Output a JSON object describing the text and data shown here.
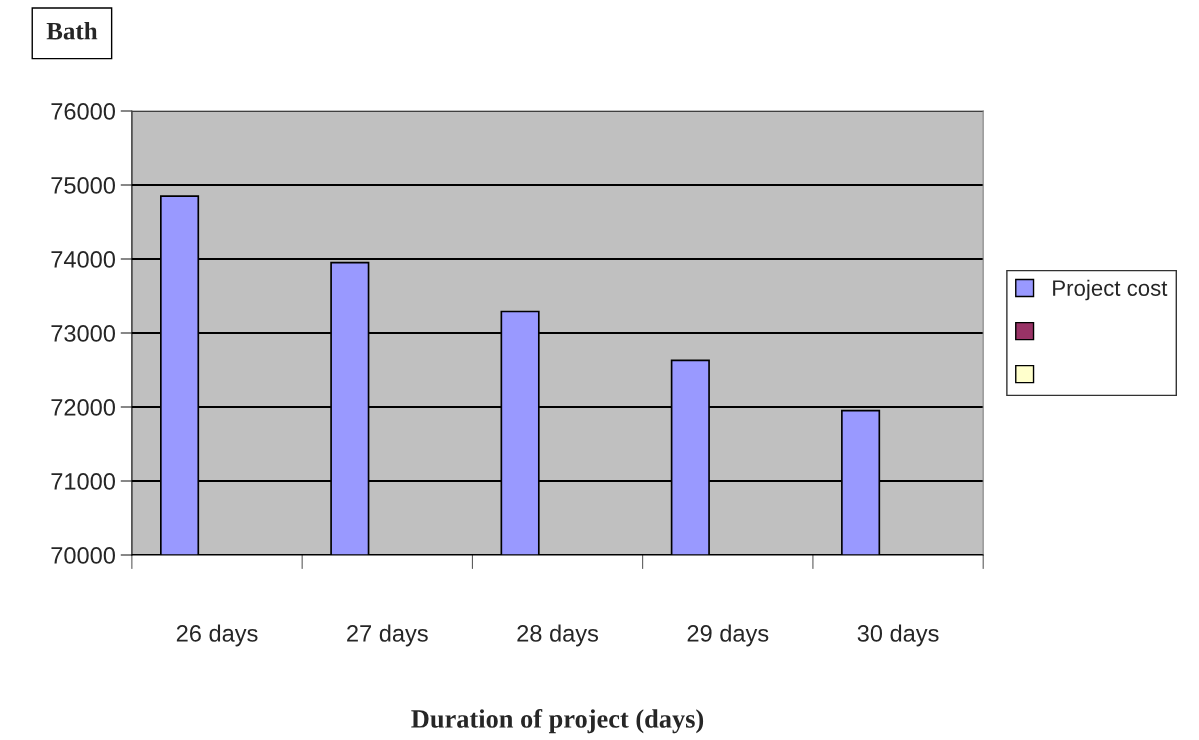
{
  "chart_data": {
    "type": "bar",
    "ylabel": "Bath",
    "xlabel": "Duration of project (days)",
    "categories": [
      "26 days",
      "27 days",
      "28 days",
      "29 days",
      "30 days"
    ],
    "series": [
      {
        "name": "Project cost",
        "color": "#9999ff",
        "values": [
          74850,
          73950,
          73290,
          72630,
          71950
        ]
      },
      {
        "color": "#993366",
        "values": [
          null,
          null,
          null,
          null,
          null
        ]
      },
      {
        "color": "#ffffcc",
        "values": [
          null,
          null,
          null,
          null,
          null
        ]
      }
    ],
    "ylim": [
      70000,
      76000
    ],
    "yticks": [
      70000,
      71000,
      72000,
      73000,
      74000,
      75000,
      76000
    ],
    "grid": "y",
    "legend": "right"
  }
}
